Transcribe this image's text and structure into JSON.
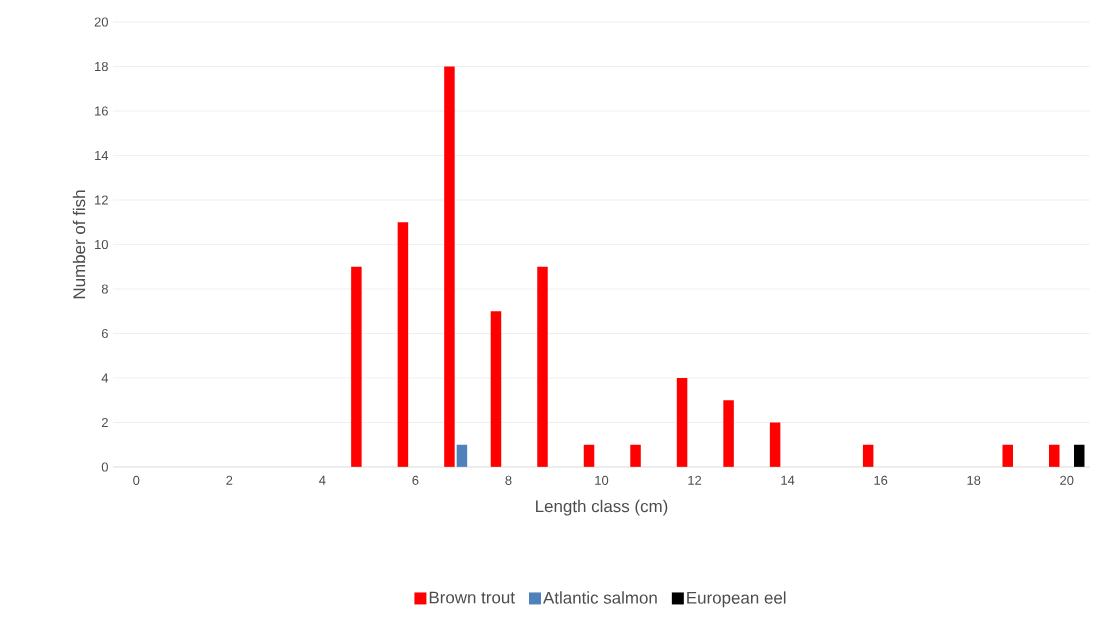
{
  "chart_data": {
    "type": "bar",
    "xlabel": "Length class (cm)",
    "ylabel": "Number of fish",
    "categories": [
      "0",
      null,
      "2",
      null,
      "4",
      null,
      "6",
      null,
      "8",
      null,
      "10",
      null,
      "12",
      null,
      "14",
      null,
      "16",
      null,
      "18",
      null,
      "20"
    ],
    "series": [
      {
        "name": "Brown trout",
        "color": "#ff0000",
        "values": [
          0,
          0,
          0,
          0,
          0,
          9,
          11,
          18,
          7,
          9,
          1,
          1,
          4,
          3,
          2,
          0,
          1,
          0,
          0,
          1,
          1
        ]
      },
      {
        "name": "Atlantic salmon",
        "color": "#4f81bd",
        "values": [
          0,
          0,
          0,
          0,
          0,
          0,
          0,
          1,
          0,
          0,
          0,
          0,
          0,
          0,
          0,
          0,
          0,
          0,
          0,
          0,
          0
        ]
      },
      {
        "name": "European eel",
        "color": "#000000",
        "values": [
          0,
          0,
          0,
          0,
          0,
          0,
          0,
          0,
          0,
          0,
          0,
          0,
          0,
          0,
          0,
          0,
          0,
          0,
          0,
          0,
          1
        ]
      }
    ],
    "ylim": [
      0,
      20
    ],
    "yticks": [
      0,
      2,
      4,
      6,
      8,
      10,
      12,
      14,
      16,
      18,
      20
    ],
    "grid": "y",
    "legend": "bottom"
  }
}
